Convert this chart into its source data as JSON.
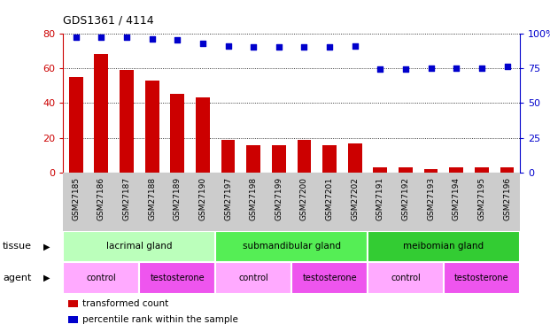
{
  "title": "GDS1361 / 4114",
  "samples": [
    "GSM27185",
    "GSM27186",
    "GSM27187",
    "GSM27188",
    "GSM27189",
    "GSM27190",
    "GSM27197",
    "GSM27198",
    "GSM27199",
    "GSM27200",
    "GSM27201",
    "GSM27202",
    "GSM27191",
    "GSM27192",
    "GSM27193",
    "GSM27194",
    "GSM27195",
    "GSM27196"
  ],
  "bar_values": [
    55,
    68,
    59,
    53,
    45,
    43,
    19,
    16,
    16,
    19,
    16,
    17,
    3,
    3,
    2,
    3,
    3,
    3
  ],
  "dot_values": [
    97,
    97,
    97,
    96,
    95,
    93,
    91,
    90,
    90,
    90,
    90,
    91,
    74,
    74,
    75,
    75,
    75,
    76
  ],
  "bar_color": "#cc0000",
  "dot_color": "#0000cc",
  "ylim_left": [
    0,
    80
  ],
  "ylim_right": [
    0,
    100
  ],
  "yticks_left": [
    0,
    20,
    40,
    60,
    80
  ],
  "yticks_right": [
    0,
    25,
    50,
    75,
    100
  ],
  "tissue_groups": [
    {
      "label": "lacrimal gland",
      "start": 0,
      "end": 6,
      "color": "#bbffbb"
    },
    {
      "label": "submandibular gland",
      "start": 6,
      "end": 12,
      "color": "#55ee55"
    },
    {
      "label": "meibomian gland",
      "start": 12,
      "end": 18,
      "color": "#33cc33"
    }
  ],
  "agent_groups": [
    {
      "label": "control",
      "start": 0,
      "end": 3,
      "color": "#ffaaff"
    },
    {
      "label": "testosterone",
      "start": 3,
      "end": 6,
      "color": "#ee55ee"
    },
    {
      "label": "control",
      "start": 6,
      "end": 9,
      "color": "#ffaaff"
    },
    {
      "label": "testosterone",
      "start": 9,
      "end": 12,
      "color": "#ee55ee"
    },
    {
      "label": "control",
      "start": 12,
      "end": 15,
      "color": "#ffaaff"
    },
    {
      "label": "testosterone",
      "start": 15,
      "end": 18,
      "color": "#ee55ee"
    }
  ],
  "legend_items": [
    {
      "label": "transformed count",
      "color": "#cc0000"
    },
    {
      "label": "percentile rank within the sample",
      "color": "#0000cc"
    }
  ],
  "xtick_bg": "#cccccc",
  "plot_bg": "#ffffff",
  "fig_bg": "#ffffff"
}
